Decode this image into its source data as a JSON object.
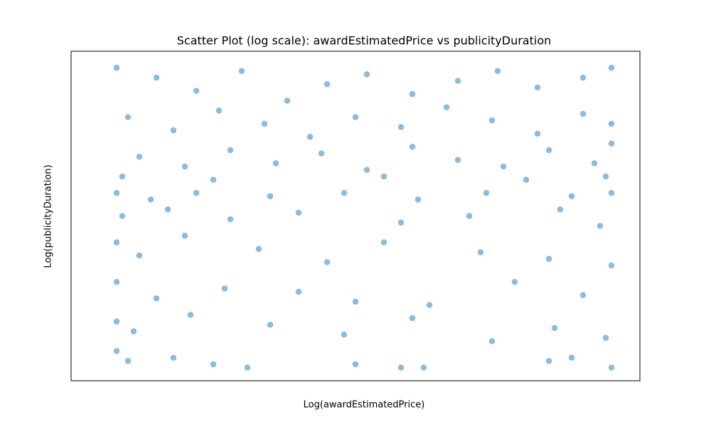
{
  "chart_data": {
    "type": "scatter",
    "title": "Scatter Plot (log scale): awardEstimatedPrice vs publicityDuration",
    "x_label": "Log(awardEstimatedPrice)",
    "y_label": "Log(publicityDuration)",
    "color": "#1f77b4",
    "xlim": [
      0,
      100
    ],
    "ylim": [
      0,
      100
    ],
    "x": [
      8,
      15,
      22,
      30,
      38,
      45,
      52,
      60,
      68,
      75,
      82,
      90,
      95,
      10,
      18,
      26,
      34,
      42,
      50,
      58,
      66,
      74,
      82,
      90,
      95,
      12,
      20,
      28,
      36,
      44,
      52,
      60,
      68,
      76,
      84,
      92,
      95,
      9,
      25,
      55,
      80,
      94,
      8,
      14,
      22,
      35,
      48,
      61,
      73,
      88,
      95,
      9,
      17,
      28,
      40,
      58,
      70,
      86,
      93,
      8,
      12,
      20,
      33,
      45,
      55,
      72,
      84,
      95,
      8,
      15,
      27,
      40,
      50,
      63,
      78,
      90,
      8,
      11,
      21,
      35,
      48,
      60,
      74,
      85,
      94,
      8,
      10,
      18,
      25,
      31,
      50,
      58,
      62,
      84,
      88,
      95
    ],
    "values": [
      95,
      92,
      88,
      94,
      85,
      90,
      93,
      87,
      91,
      94,
      89,
      92,
      95,
      80,
      76,
      82,
      78,
      74,
      80,
      77,
      83,
      79,
      75,
      81,
      78,
      68,
      65,
      70,
      66,
      69,
      64,
      71,
      67,
      65,
      70,
      66,
      72,
      62,
      61,
      62,
      61,
      62,
      57,
      55,
      57,
      56,
      57,
      55,
      57,
      56,
      57,
      50,
      52,
      49,
      51,
      48,
      50,
      52,
      47,
      42,
      38,
      44,
      40,
      36,
      42,
      39,
      37,
      35,
      30,
      25,
      28,
      27,
      24,
      23,
      30,
      26,
      18,
      15,
      20,
      17,
      14,
      19,
      12,
      16,
      13,
      9,
      6,
      7,
      5,
      4,
      5,
      4,
      4,
      6,
      7,
      4
    ]
  }
}
